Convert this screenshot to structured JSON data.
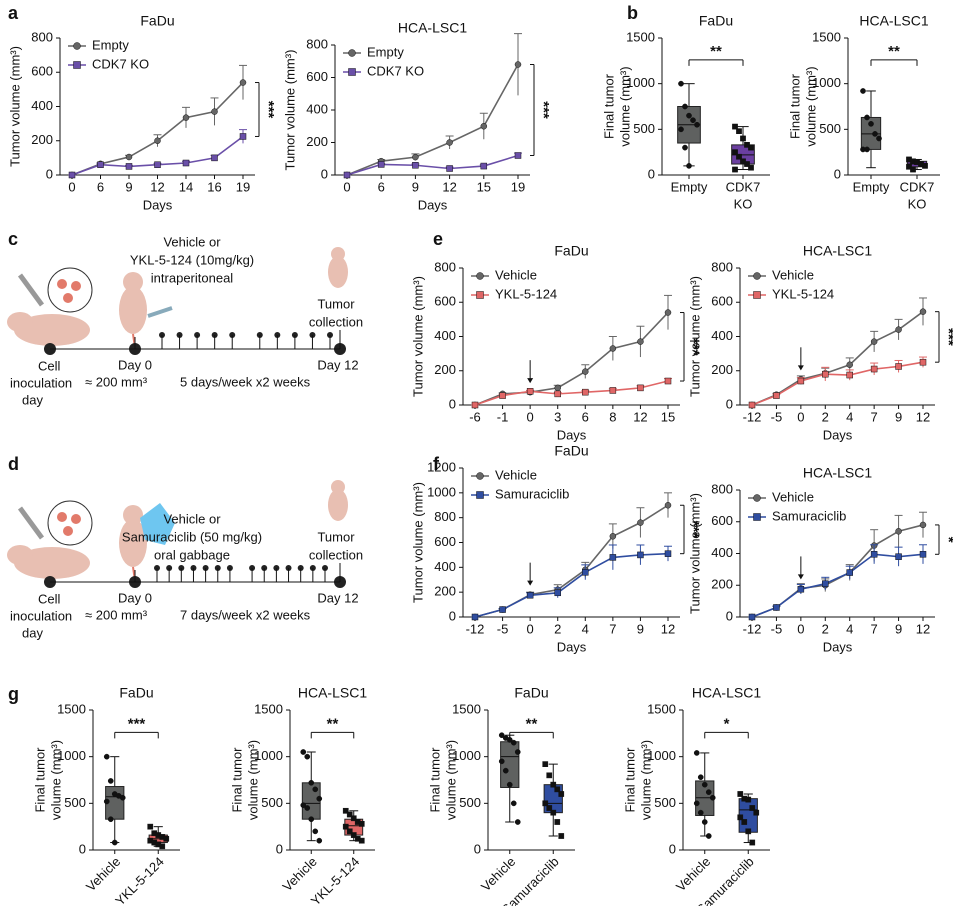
{
  "panel_labels": [
    "a",
    "b",
    "c",
    "d",
    "e",
    "f",
    "g"
  ],
  "schematics": [
    {
      "drug": [
        "Vehicle or",
        "YKL-5-124 (10mg/kg)",
        "intraperitoneal"
      ],
      "collection": [
        "Tumor",
        "collection"
      ],
      "start": [
        "Cell",
        "inoculation",
        "day"
      ],
      "day0": "Day 0",
      "size": "≈ 200 mm³",
      "schedule": "5 days/week x2 weeks",
      "end": "Day 12"
    },
    {
      "drug": [
        "Vehicle or",
        "Samuraciclib (50 mg/kg)",
        "oral gabbage"
      ],
      "collection": [
        "Tumor",
        "collection"
      ],
      "start": [
        "Cell",
        "inoculation",
        "day"
      ],
      "day0": "Day 0",
      "size": "≈ 200 mm³",
      "schedule": "7 days/week x2 weeks",
      "end": "Day 12"
    }
  ],
  "chart_data": [
    {
      "type": "line",
      "title": "FaDu",
      "xlabel": "Days",
      "ylabel": "Tumor volume (mm³)",
      "categories": [
        0,
        6,
        9,
        12,
        14,
        16,
        19
      ],
      "ylim": [
        0,
        800
      ],
      "yticks": [
        0,
        200,
        400,
        600,
        800
      ],
      "legend": "upper left",
      "significance": "***",
      "series": [
        {
          "name": "Empty",
          "color": "#666666",
          "marker": "circle",
          "values": [
            0,
            65,
            105,
            200,
            335,
            370,
            540
          ],
          "errors": [
            0,
            6,
            10,
            35,
            60,
            80,
            100
          ]
        },
        {
          "name": "CDK7 KO",
          "color": "#6a4fa8",
          "marker": "square",
          "values": [
            0,
            60,
            50,
            60,
            70,
            100,
            225
          ],
          "errors": [
            0,
            5,
            5,
            8,
            10,
            15,
            40
          ]
        }
      ]
    },
    {
      "type": "line",
      "title": "HCA-LSC1",
      "xlabel": "Days",
      "ylabel": "Tumor volume (mm³)",
      "categories": [
        0,
        6,
        9,
        12,
        15,
        19
      ],
      "ylim": [
        0,
        800
      ],
      "yticks": [
        0,
        200,
        400,
        600,
        800
      ],
      "legend": "upper left",
      "significance": "***",
      "series": [
        {
          "name": "Empty",
          "color": "#666666",
          "marker": "circle",
          "values": [
            0,
            85,
            110,
            200,
            300,
            680
          ],
          "errors": [
            0,
            10,
            20,
            40,
            80,
            190
          ]
        },
        {
          "name": "CDK7 KO",
          "color": "#6a4fa8",
          "marker": "square",
          "values": [
            0,
            65,
            60,
            40,
            55,
            120
          ],
          "errors": [
            0,
            5,
            8,
            8,
            8,
            15
          ]
        }
      ]
    },
    {
      "type": "box",
      "title": "FaDu",
      "ylabel": [
        "Final tumor",
        "volume (mm³)"
      ],
      "categories": [
        [
          "Empty"
        ],
        [
          "CDK7",
          "KO"
        ]
      ],
      "ylim": [
        0,
        1500
      ],
      "yticks": [
        0,
        500,
        1000,
        1500
      ],
      "significance": "**",
      "boxes": [
        {
          "color": "#5f6160",
          "marker": "circle",
          "min": 100,
          "q1": 350,
          "median": 550,
          "q3": 750,
          "max": 1000,
          "points": [
            1000,
            750,
            650,
            600,
            550,
            500,
            300,
            100
          ]
        },
        {
          "color": "#6b3fa0",
          "marker": "square",
          "min": 60,
          "q1": 120,
          "median": 220,
          "q3": 330,
          "max": 530,
          "points": [
            530,
            480,
            400,
            330,
            300,
            250,
            200,
            150,
            120,
            80,
            60
          ]
        }
      ]
    },
    {
      "type": "box",
      "title": "HCA-LSC1",
      "ylabel": [
        "Final tumor",
        "volume (mm³)"
      ],
      "categories": [
        [
          "Empty"
        ],
        [
          "CDK7",
          "KO"
        ]
      ],
      "ylim": [
        0,
        1500
      ],
      "yticks": [
        0,
        500,
        1000,
        1500
      ],
      "significance": "**",
      "boxes": [
        {
          "color": "#5f6160",
          "marker": "circle",
          "min": 80,
          "q1": 280,
          "median": 450,
          "q3": 630,
          "max": 920,
          "points": [
            920,
            630,
            560,
            450,
            400,
            280,
            280
          ]
        },
        {
          "color": "#6b3fa0",
          "marker": "square",
          "min": 60,
          "q1": 90,
          "median": 120,
          "q3": 150,
          "max": 170,
          "points": [
            170,
            150,
            140,
            120,
            100,
            90,
            60
          ]
        }
      ]
    },
    {
      "type": "line",
      "title": "FaDu",
      "xlabel": "Days",
      "ylabel": "Tumor volume (mm³)",
      "categories": [
        -6,
        -1,
        0,
        3,
        6,
        8,
        12,
        15
      ],
      "arrow_at": 0,
      "ylim": [
        0,
        800
      ],
      "yticks": [
        0,
        200,
        400,
        600,
        800
      ],
      "legend": "upper left",
      "significance": "***",
      "series": [
        {
          "name": "Vehicle",
          "color": "#666666",
          "marker": "circle",
          "values": [
            0,
            65,
            75,
            100,
            195,
            330,
            370,
            540
          ],
          "errors": [
            0,
            5,
            10,
            15,
            40,
            70,
            90,
            100
          ]
        },
        {
          "name": "YKL-5-124",
          "color": "#e06666",
          "marker": "square",
          "values": [
            0,
            55,
            80,
            65,
            75,
            85,
            100,
            140
          ],
          "errors": [
            0,
            5,
            5,
            8,
            8,
            10,
            12,
            15
          ]
        }
      ]
    },
    {
      "type": "line",
      "title": "HCA-LSC1",
      "xlabel": "Days",
      "ylabel": "Tumor volume (mm³)",
      "categories": [
        -12,
        -5,
        0,
        2,
        4,
        7,
        9,
        12
      ],
      "arrow_at": 0,
      "ylim": [
        0,
        800
      ],
      "yticks": [
        0,
        200,
        400,
        600,
        800
      ],
      "legend": "upper left",
      "significance": "***",
      "series": [
        {
          "name": "Vehicle",
          "color": "#666666",
          "marker": "circle",
          "values": [
            0,
            60,
            150,
            185,
            235,
            370,
            440,
            545
          ],
          "errors": [
            0,
            8,
            20,
            30,
            40,
            60,
            60,
            80
          ]
        },
        {
          "name": "YKL-5-124",
          "color": "#e06666",
          "marker": "square",
          "values": [
            0,
            55,
            140,
            180,
            175,
            210,
            225,
            250
          ],
          "errors": [
            0,
            8,
            20,
            40,
            30,
            35,
            35,
            30
          ]
        }
      ]
    },
    {
      "type": "line",
      "title": "FaDu",
      "xlabel": "Days",
      "ylabel": "Tumor volume (mm³)",
      "categories": [
        -12,
        -5,
        0,
        2,
        4,
        7,
        9,
        12
      ],
      "arrow_at": 0,
      "ylim": [
        0,
        1200
      ],
      "yticks": [
        0,
        200,
        400,
        600,
        800,
        1000,
        1200
      ],
      "legend": "upper left",
      "significance": "***",
      "series": [
        {
          "name": "Vehicle",
          "color": "#666666",
          "marker": "circle",
          "values": [
            0,
            60,
            180,
            220,
            380,
            650,
            760,
            900
          ],
          "errors": [
            0,
            8,
            20,
            40,
            60,
            100,
            120,
            100
          ]
        },
        {
          "name": "Samuraciclib",
          "color": "#2f4da0",
          "marker": "square",
          "values": [
            0,
            60,
            175,
            195,
            360,
            480,
            500,
            510
          ],
          "errors": [
            0,
            8,
            20,
            40,
            60,
            100,
            80,
            60
          ]
        }
      ]
    },
    {
      "type": "line",
      "title": "HCA-LSC1",
      "xlabel": "Days",
      "ylabel": "Tumor volume (mm³)",
      "categories": [
        -12,
        -5,
        0,
        2,
        4,
        7,
        9,
        12
      ],
      "arrow_at": 0,
      "ylim": [
        0,
        800
      ],
      "yticks": [
        0,
        200,
        400,
        600,
        800
      ],
      "legend": "upper left",
      "significance": "*",
      "series": [
        {
          "name": "Vehicle",
          "color": "#666666",
          "marker": "circle",
          "values": [
            0,
            60,
            180,
            200,
            280,
            450,
            540,
            580
          ],
          "errors": [
            0,
            8,
            30,
            40,
            50,
            100,
            100,
            80
          ]
        },
        {
          "name": "Samuraciclib",
          "color": "#2f4da0",
          "marker": "square",
          "values": [
            0,
            60,
            175,
            210,
            280,
            395,
            380,
            395
          ],
          "errors": [
            0,
            8,
            30,
            40,
            40,
            60,
            60,
            60
          ]
        }
      ]
    },
    {
      "type": "box",
      "title": "FaDu",
      "ylabel": [
        "Final tumor",
        "volume (mm³)"
      ],
      "categories": [
        "Vehicle",
        "YKL-5-124"
      ],
      "rotate_labels": true,
      "ylim": [
        0,
        1500
      ],
      "yticks": [
        0,
        500,
        1000,
        1500
      ],
      "significance": "***",
      "boxes": [
        {
          "color": "#5f6160",
          "marker": "circle",
          "min": 80,
          "q1": 330,
          "median": 570,
          "q3": 680,
          "max": 1000,
          "points": [
            1000,
            740,
            600,
            580,
            560,
            520,
            330,
            80
          ]
        },
        {
          "color": "#e06666",
          "marker": "square",
          "min": 40,
          "q1": 80,
          "median": 120,
          "q3": 160,
          "max": 250,
          "points": [
            250,
            180,
            160,
            140,
            120,
            100,
            80,
            60,
            40
          ]
        }
      ]
    },
    {
      "type": "box",
      "title": "HCA-LSC1",
      "ylabel": [
        "Final tumor",
        "volume (mm³)"
      ],
      "categories": [
        "Vehicle",
        "YKL-5-124"
      ],
      "rotate_labels": true,
      "ylim": [
        0,
        1500
      ],
      "yticks": [
        0,
        500,
        1000,
        1500
      ],
      "significance": "**",
      "boxes": [
        {
          "color": "#5f6160",
          "marker": "circle",
          "min": 100,
          "q1": 330,
          "median": 500,
          "q3": 720,
          "max": 1050,
          "points": [
            1050,
            1000,
            720,
            650,
            550,
            480,
            450,
            330,
            200,
            100
          ]
        },
        {
          "color": "#e06666",
          "marker": "square",
          "min": 100,
          "q1": 160,
          "median": 260,
          "q3": 330,
          "max": 420,
          "points": [
            420,
            380,
            340,
            300,
            280,
            250,
            200,
            160,
            120,
            100
          ]
        }
      ]
    },
    {
      "type": "box",
      "title": "FaDu",
      "ylabel": [
        "Final tumor",
        "volume (mm³)"
      ],
      "categories": [
        "Vehicle",
        "Samuraciclib"
      ],
      "rotate_labels": true,
      "ylim": [
        0,
        1500
      ],
      "yticks": [
        0,
        500,
        1000,
        1500
      ],
      "significance": "**",
      "boxes": [
        {
          "color": "#5f6160",
          "marker": "circle",
          "min": 300,
          "q1": 670,
          "median": 1000,
          "q3": 1160,
          "max": 1230,
          "points": [
            1230,
            1200,
            1180,
            1150,
            1050,
            950,
            850,
            700,
            500,
            300
          ]
        },
        {
          "color": "#2f4da0",
          "marker": "square",
          "min": 150,
          "q1": 400,
          "median": 500,
          "q3": 700,
          "max": 920,
          "points": [
            920,
            800,
            700,
            650,
            600,
            500,
            450,
            400,
            300,
            150
          ]
        }
      ]
    },
    {
      "type": "box",
      "title": "HCA-LSC1",
      "ylabel": [
        "Final tumor",
        "volume (mm³)"
      ],
      "categories": [
        "Vehicle",
        "Samuraciclib"
      ],
      "rotate_labels": true,
      "ylim": [
        0,
        1500
      ],
      "yticks": [
        0,
        500,
        1000,
        1500
      ],
      "significance": "*",
      "boxes": [
        {
          "color": "#5f6160",
          "marker": "circle",
          "min": 150,
          "q1": 370,
          "median": 560,
          "q3": 740,
          "max": 1040,
          "points": [
            1040,
            780,
            700,
            620,
            560,
            500,
            400,
            300,
            150
          ]
        },
        {
          "color": "#2f4da0",
          "marker": "square",
          "min": 80,
          "q1": 190,
          "median": 430,
          "q3": 550,
          "max": 600,
          "points": [
            600,
            550,
            540,
            450,
            400,
            350,
            300,
            200,
            80
          ]
        }
      ]
    }
  ]
}
